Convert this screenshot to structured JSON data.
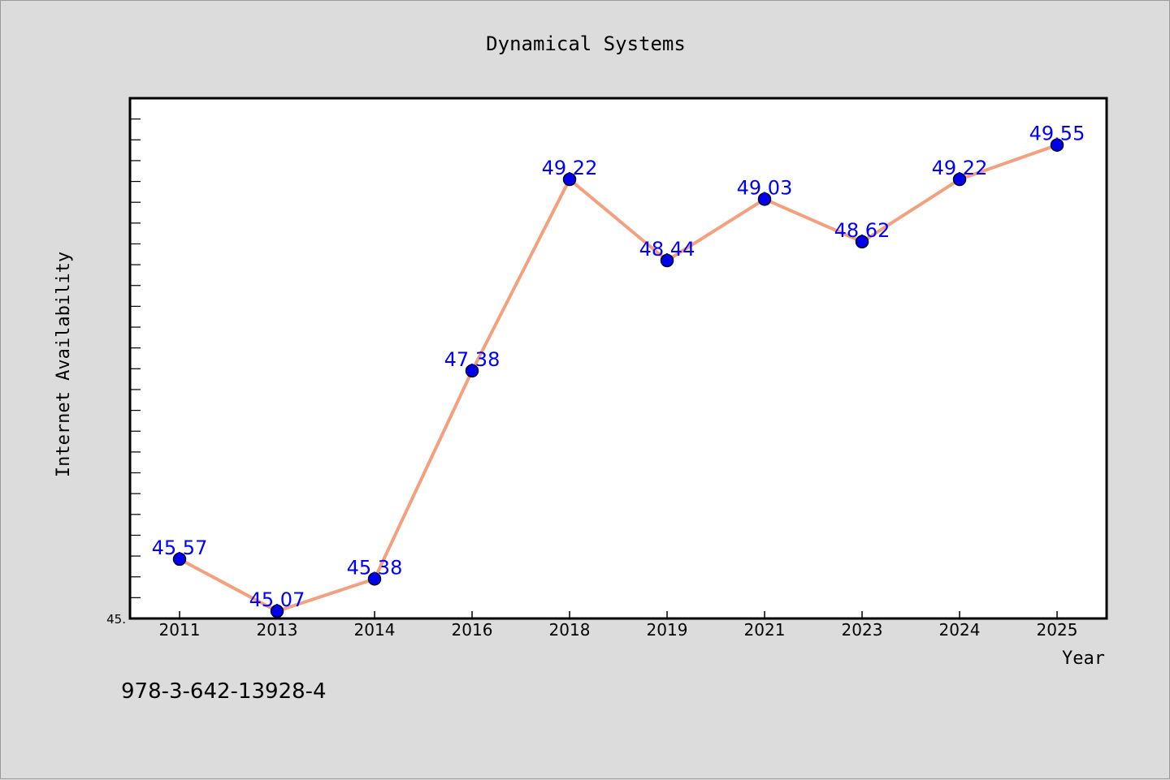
{
  "chart_data": {
    "type": "line",
    "title": "Dynamical Systems",
    "xlabel": "Year",
    "ylabel": "Internet Availability",
    "categories": [
      "2011",
      "2013",
      "2014",
      "2016",
      "2018",
      "2019",
      "2021",
      "2023",
      "2024",
      "2025"
    ],
    "series": [
      {
        "values": [
          45.57,
          45.07,
          45.38,
          47.38,
          49.22,
          48.44,
          49.03,
          48.62,
          49.22,
          49.55
        ],
        "labels": [
          "45.57",
          "45.07",
          "45.38",
          "47.38",
          "49.22",
          "48.44",
          "49.03",
          "48.62",
          "49.22",
          "49.55"
        ]
      }
    ],
    "ylim": [
      45.0,
      50.0
    ],
    "y_min_label": "45.",
    "grid": false,
    "colors": {
      "line": "#f4a07e",
      "marker": "#0000ee",
      "marker_edge": "#000022",
      "data_label": "#0000ff",
      "plot_bg": "#ffffff",
      "figure_bg": "#dcdcdc"
    }
  },
  "footer": {
    "isbn": "978-3-642-13928-4"
  }
}
